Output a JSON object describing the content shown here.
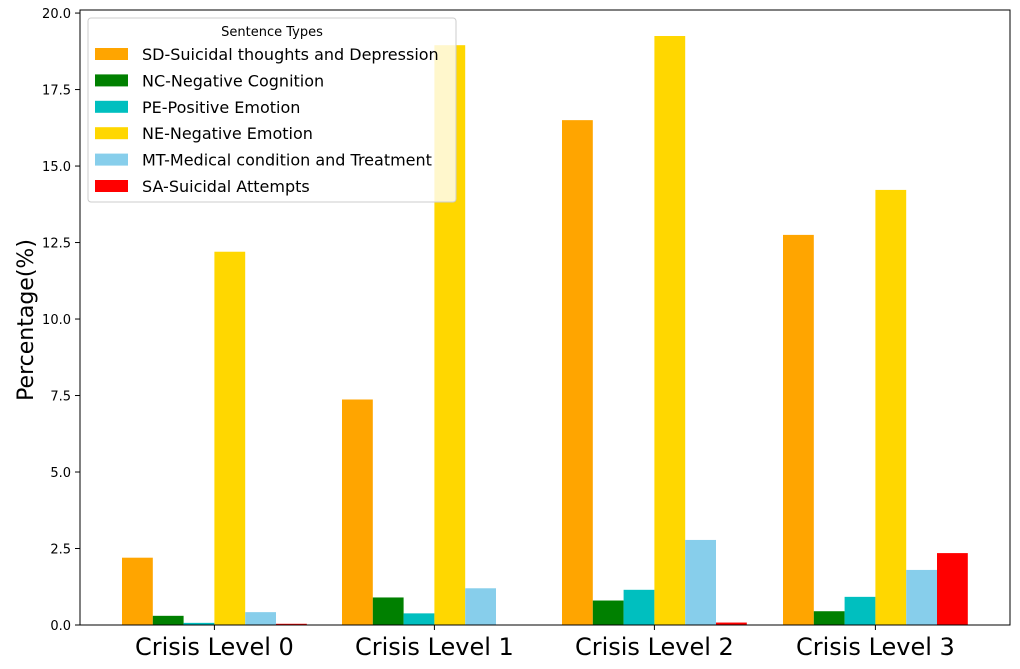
{
  "chart_data": {
    "type": "bar",
    "title": "",
    "xlabel": "",
    "ylabel": "Percentage(%)",
    "ylim": [
      0,
      20.1
    ],
    "yticks": [
      "0.0",
      "2.5",
      "5.0",
      "7.5",
      "10.0",
      "12.5",
      "15.0",
      "17.5",
      "20.0"
    ],
    "ytick_values": [
      0,
      2.5,
      5,
      7.5,
      10,
      12.5,
      15,
      17.5,
      20
    ],
    "categories": [
      "Crisis Level 0",
      "Crisis Level 1",
      "Crisis Level 2",
      "Crisis Level 3"
    ],
    "legend": {
      "title": "Sentence Types",
      "placement": "top-left"
    },
    "grid": false,
    "series": [
      {
        "name": "SD-Suicidal thoughts and Depression",
        "color": "#ffa500",
        "values": [
          2.2,
          7.37,
          16.5,
          12.75
        ]
      },
      {
        "name": "NC-Negative Cognition",
        "color": "#008000",
        "values": [
          0.3,
          0.9,
          0.8,
          0.45
        ]
      },
      {
        "name": "PE-Positive Emotion",
        "color": "#00bfbf",
        "values": [
          0.07,
          0.38,
          1.15,
          0.92
        ]
      },
      {
        "name": "NE-Negative Emotion",
        "color": "#ffd700",
        "values": [
          12.2,
          18.95,
          19.25,
          14.22
        ]
      },
      {
        "name": "MT-Medical condition and Treatment",
        "color": "#87ceeb",
        "values": [
          0.42,
          1.2,
          2.78,
          1.8
        ]
      },
      {
        "name": "SA-Suicidal Attempts",
        "color": "#ff0000",
        "values": [
          0.04,
          0.0,
          0.08,
          2.35
        ]
      }
    ]
  }
}
